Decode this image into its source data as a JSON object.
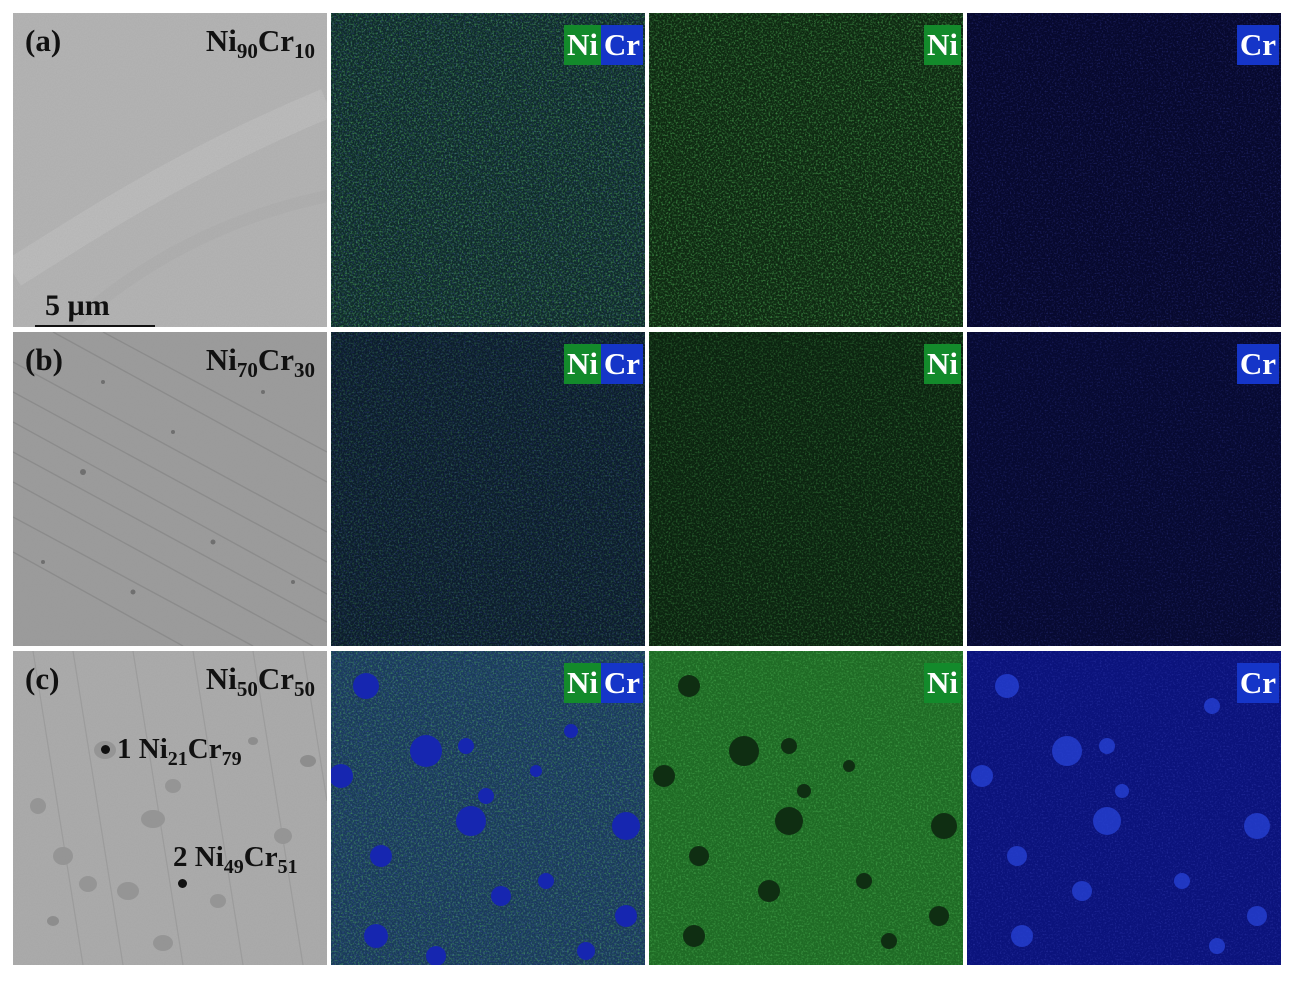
{
  "rows": [
    {
      "letter": "(a)",
      "composition": {
        "ni": "Ni",
        "ni_sub": "90",
        "cr": "Cr",
        "cr_sub": "10"
      },
      "scale_bar": "5 µm"
    },
    {
      "letter": "(b)",
      "composition": {
        "ni": "Ni",
        "ni_sub": "70",
        "cr": "Cr",
        "cr_sub": "30"
      }
    },
    {
      "letter": "(c)",
      "composition": {
        "ni": "Ni",
        "ni_sub": "50",
        "cr": "Cr",
        "cr_sub": "50"
      },
      "points": [
        {
          "id": "1",
          "ni": "Ni",
          "ni_sub": "21",
          "cr": "Cr",
          "cr_sub": "79"
        },
        {
          "id": "2",
          "ni": "Ni",
          "ni_sub": "49",
          "cr": "Cr",
          "cr_sub": "51"
        }
      ]
    }
  ],
  "map_labels": {
    "ni": "Ni",
    "cr": "Cr"
  },
  "colors": {
    "ni_tag": "#138a2b",
    "cr_tag": "#1535c8",
    "sem_a": "#b2b2b2",
    "sem_b": "#9a9a9a",
    "sem_c": "#a8a8a8"
  }
}
